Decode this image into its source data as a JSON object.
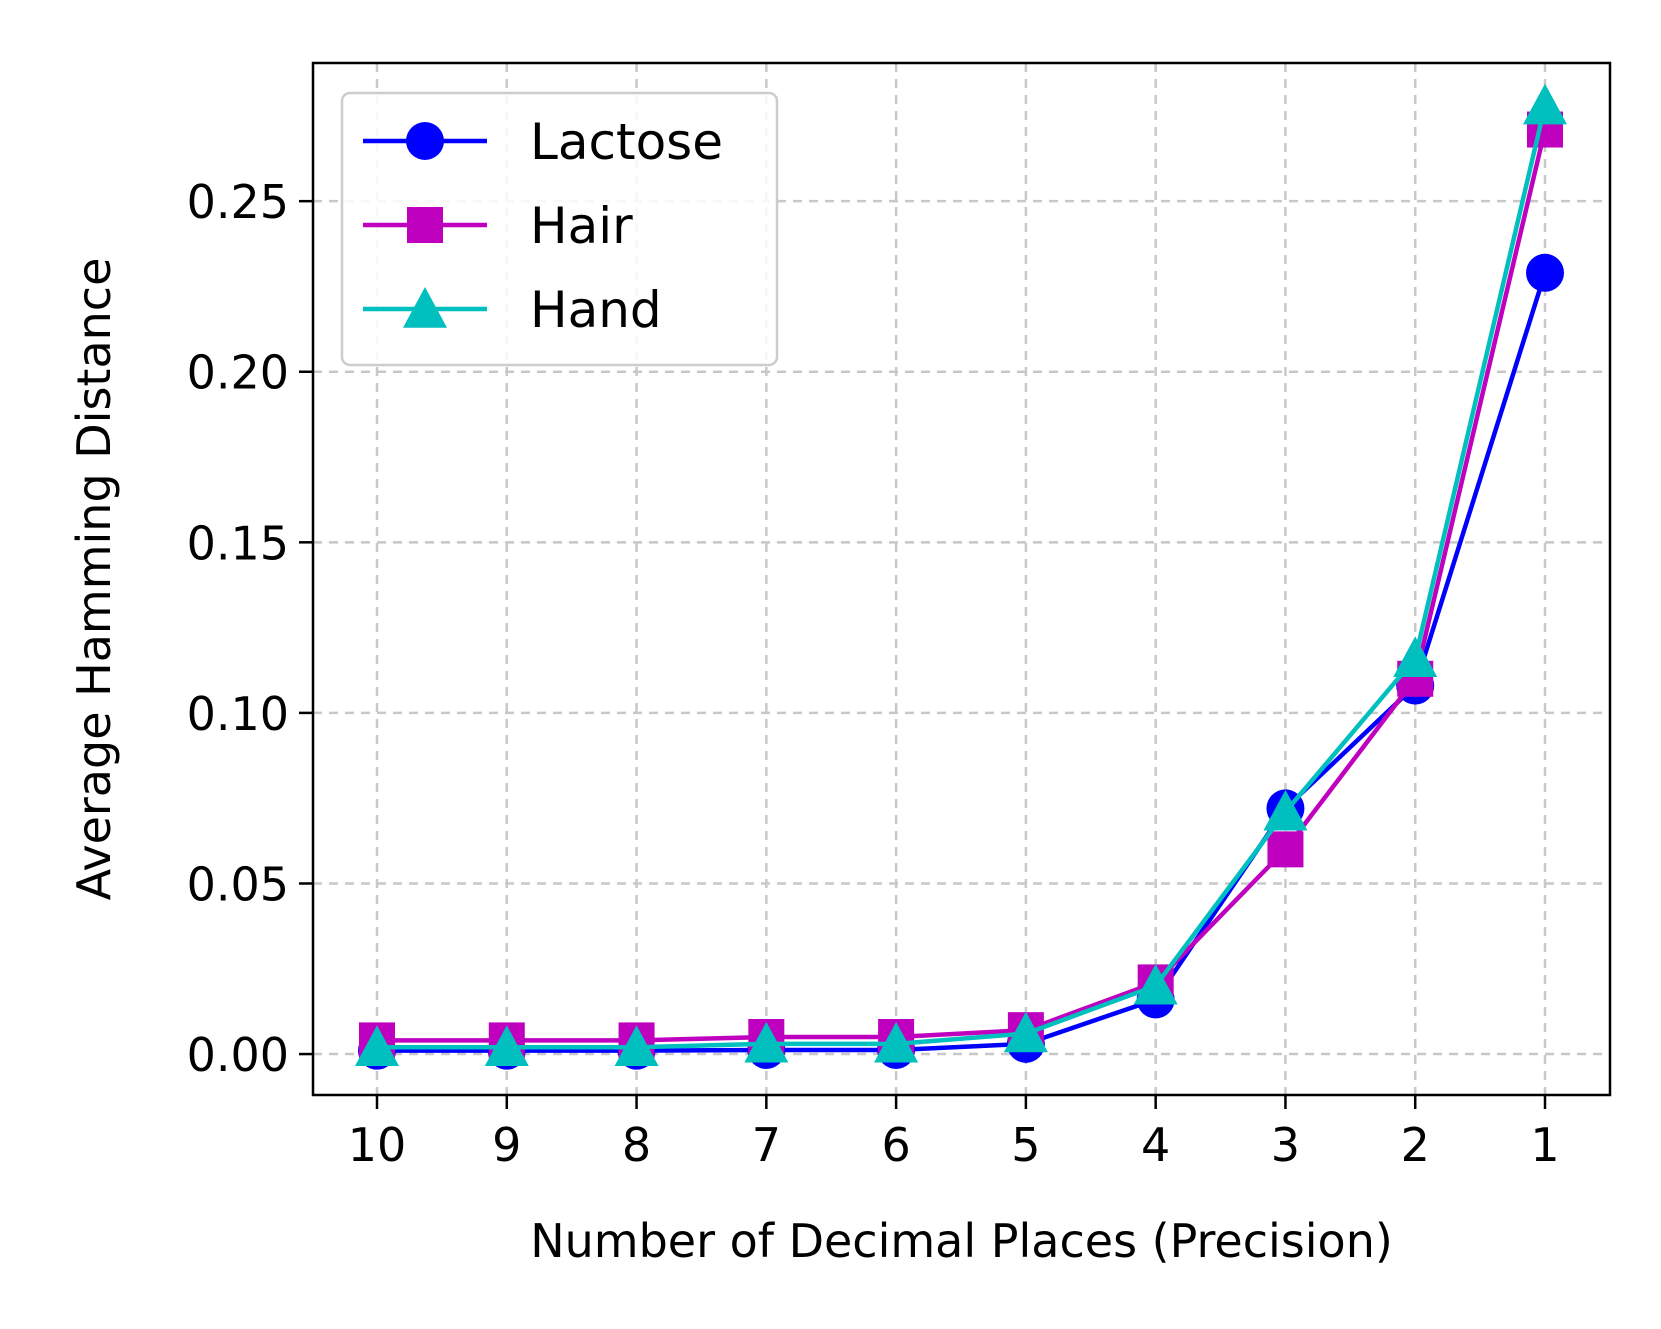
{
  "chart_data": {
    "type": "line",
    "xlabel": "Number of Decimal Places (Precision)",
    "ylabel": "Average Hamming Distance",
    "x": [
      "10",
      "9",
      "8",
      "7",
      "6",
      "5",
      "4",
      "3",
      "2",
      "1"
    ],
    "ylim": [
      -0.012,
      0.2905
    ],
    "yticks": [
      0.0,
      0.05,
      0.1,
      0.15,
      0.2,
      0.25
    ],
    "ytick_labels": [
      "0.00",
      "0.05",
      "0.10",
      "0.15",
      "0.20",
      "0.25"
    ],
    "grid": true,
    "legend_position": "top-left",
    "series": [
      {
        "name": "Lactose",
        "marker": "circle",
        "color": "#0000ff",
        "values": [
          0.001,
          0.001,
          0.001,
          0.0012,
          0.0012,
          0.003,
          0.016,
          0.072,
          0.108,
          0.229
        ]
      },
      {
        "name": "Hair",
        "marker": "square",
        "color": "#bf00bf",
        "values": [
          0.004,
          0.004,
          0.004,
          0.005,
          0.005,
          0.007,
          0.021,
          0.06,
          0.11,
          0.271
        ]
      },
      {
        "name": "Hand",
        "marker": "triangle",
        "color": "#00bfbf",
        "values": [
          0.002,
          0.002,
          0.002,
          0.003,
          0.003,
          0.006,
          0.02,
          0.071,
          0.116,
          0.278
        ]
      }
    ]
  }
}
